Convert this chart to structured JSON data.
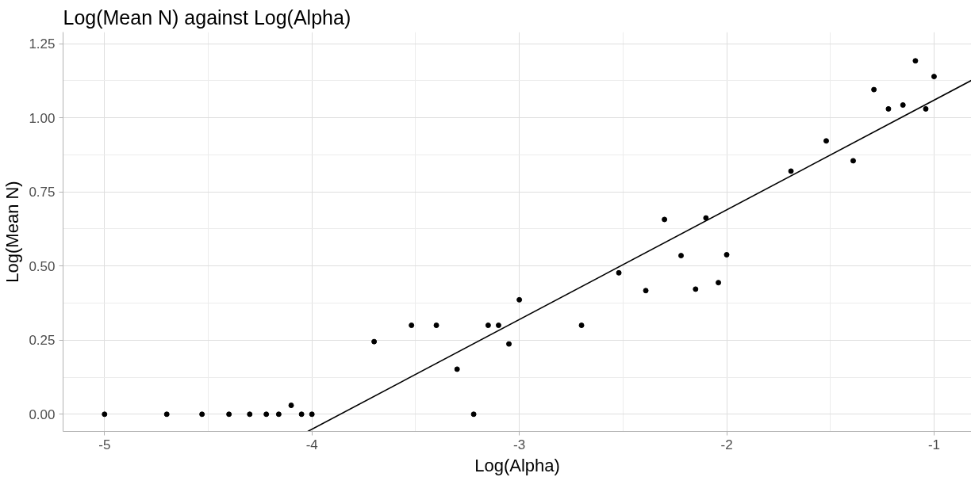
{
  "chart_data": {
    "type": "scatter",
    "title": "Log(Mean N) against Log(Alpha)",
    "xlabel": "Log(Alpha)",
    "ylabel": "Log(Mean N)",
    "xlim": [
      -5.2,
      -0.82
    ],
    "ylim": [
      -0.058,
      1.289
    ],
    "xticks": [
      -5,
      -4,
      -3,
      -2,
      -1
    ],
    "yticks": [
      {
        "value": 0,
        "label": "0.00"
      },
      {
        "value": 0.25,
        "label": "0.25"
      },
      {
        "value": 0.5,
        "label": "0.50"
      },
      {
        "value": 0.75,
        "label": "0.75"
      },
      {
        "value": 1,
        "label": "1.00"
      },
      {
        "value": 1.25,
        "label": "1.25"
      }
    ],
    "grid": true,
    "series": [
      {
        "marker": "circle",
        "color": "#000000",
        "x": [
          -5,
          -4.7,
          -4.53,
          -4.4,
          -4.3,
          -4.22,
          -4.16,
          -4.1,
          -4.05,
          -4.0,
          -3.7,
          -3.52,
          -3.4,
          -3.3,
          -3.22,
          -3.15,
          -3.1,
          -3.05,
          -3.0,
          -2.7,
          -2.52,
          -2.39,
          -2.3,
          -2.22,
          -2.15,
          -2.1,
          -2.04,
          -2.0,
          -1.69,
          -1.52,
          -1.39,
          -1.29,
          -1.22,
          -1.15,
          -1.09,
          -1.04,
          -1.0
        ],
        "values": [
          0,
          0,
          0,
          0,
          0,
          0,
          0,
          0.03,
          0,
          0,
          0.245,
          0.3,
          0.3,
          0.152,
          0,
          0.3,
          0.3,
          0.237,
          0.386,
          0.3,
          0.477,
          0.417,
          0.657,
          0.535,
          0.422,
          0.662,
          0.444,
          0.538,
          0.82,
          0.922,
          0.855,
          1.095,
          1.03,
          1.043,
          1.192,
          1.03,
          1.139
        ]
      },
      {
        "type": "line",
        "marker": "none",
        "color": "#000000",
        "line_style": "solid",
        "x": [
          -4.02,
          -0.82
        ],
        "values": [
          -0.058,
          1.126
        ]
      }
    ]
  }
}
